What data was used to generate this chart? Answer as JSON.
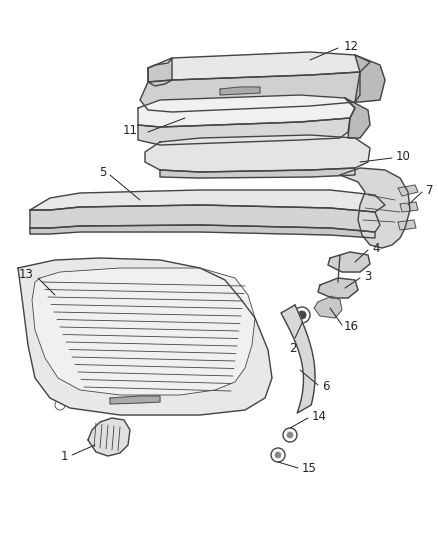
{
  "background_color": "#ffffff",
  "line_color": "#444444",
  "fill_color": "#e8e8e8",
  "fill_dark": "#cccccc",
  "label_color": "#222222",
  "fig_width": 4.38,
  "fig_height": 5.33,
  "dpi": 100
}
